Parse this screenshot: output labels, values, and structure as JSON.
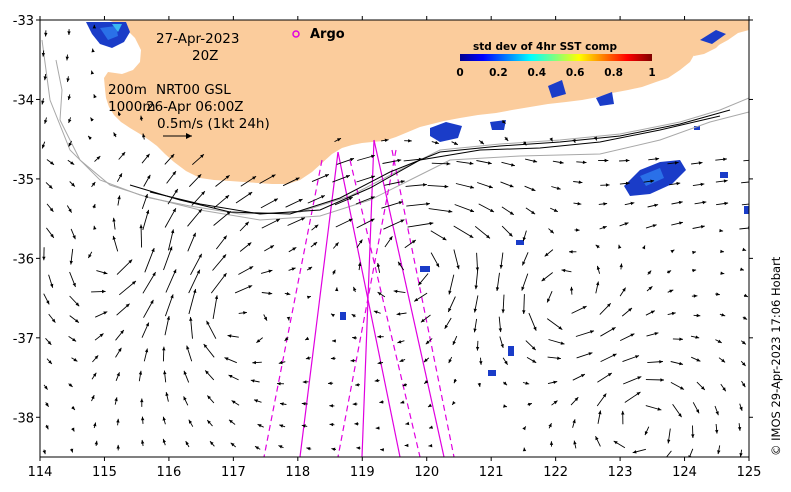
{
  "date": "27-Apr-2023",
  "time": "20Z",
  "depth_200": "200m",
  "depth_1000": "1000m",
  "product": "NRT00 GSL",
  "product_date": "26-Apr 06:00Z",
  "scale_label": "0.5m/s (1kt 24h)",
  "argo_label": "Argo",
  "argo_marker_color": "#e000e0",
  "colorbar": {
    "title": "std dev of 4hr SST comp",
    "ticks": [
      "0",
      "0.2",
      "0.4",
      "0.6",
      "0.8",
      "1"
    ],
    "colormap": "jet"
  },
  "credit": "© IMOS 29-Apr-2023 17:06 Hobart",
  "axes": {
    "x_ticks": [
      "114",
      "115",
      "116",
      "117",
      "118",
      "119",
      "120",
      "121",
      "122",
      "123",
      "124",
      "125"
    ],
    "y_ticks": [
      "-33",
      "-34",
      "-35",
      "-36",
      "-37",
      "-38"
    ],
    "x_range": [
      114,
      125
    ],
    "y_range": [
      -38.5,
      -33
    ]
  },
  "colors": {
    "land": "#fbcc9c",
    "sst_patch": "#1a3cc8",
    "swath": "#e000e0",
    "isobath": "#a8a8a8",
    "arrows": "#000000"
  }
}
